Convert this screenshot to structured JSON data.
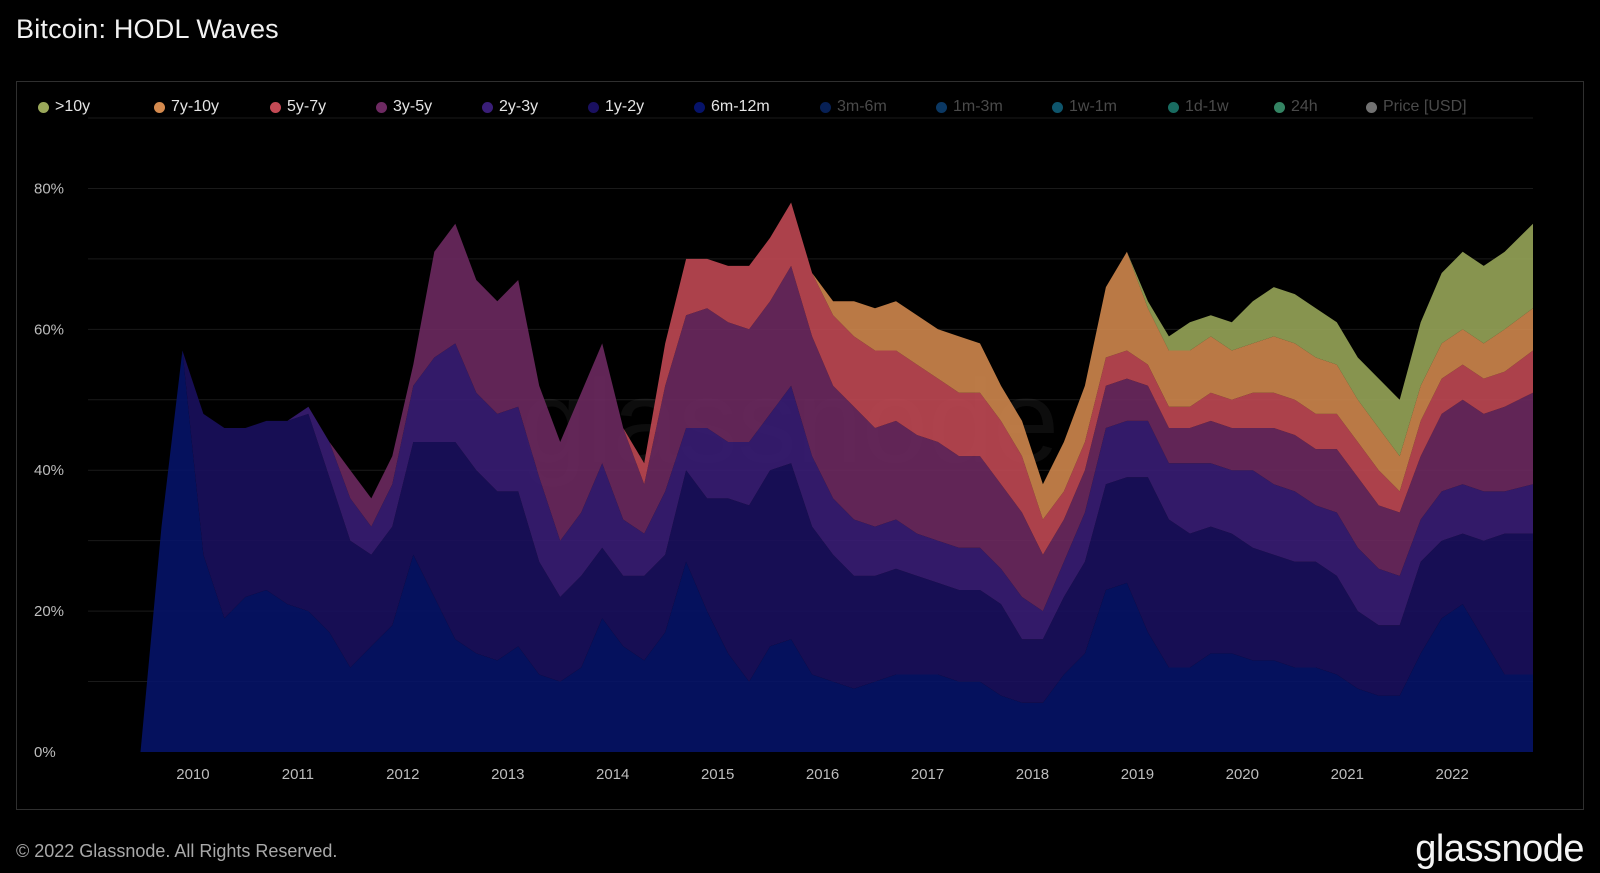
{
  "page": {
    "title": "Bitcoin: HODL Waves",
    "copyright": "© 2022 Glassnode. All Rights Reserved.",
    "brand": "glassnode",
    "watermark": "glassnode"
  },
  "chart_data": {
    "type": "area",
    "stacked": true,
    "title": "Bitcoin: HODL Waves",
    "xlabel": "",
    "ylabel": "",
    "ylim": [
      0,
      90
    ],
    "xlim": [
      2009.0,
      2022.77
    ],
    "y_ticks": [
      0,
      20,
      40,
      60,
      80
    ],
    "y_tick_labels": [
      "0%",
      "20%",
      "40%",
      "60%",
      "80%"
    ],
    "x_ticks": [
      2010,
      2011,
      2012,
      2013,
      2014,
      2015,
      2016,
      2017,
      2018,
      2019,
      2020,
      2021,
      2022
    ],
    "x_tick_labels": [
      "2010",
      "2011",
      "2012",
      "2013",
      "2014",
      "2015",
      "2016",
      "2017",
      "2018",
      "2019",
      "2020",
      "2021",
      "2022"
    ],
    "legend": [
      {
        "name": ">10y",
        "color": "#9aa85a",
        "active": true
      },
      {
        "name": "7y-10y",
        "color": "#d48a4e",
        "active": true
      },
      {
        "name": "5y-7y",
        "color": "#c44a55",
        "active": true
      },
      {
        "name": "3y-5y",
        "color": "#6e2a62",
        "active": true
      },
      {
        "name": "2y-3y",
        "color": "#3a1e78",
        "active": true
      },
      {
        "name": "1y-2y",
        "color": "#1a1060",
        "active": true
      },
      {
        "name": "6m-12m",
        "color": "#06136a",
        "active": true
      },
      {
        "name": "3m-6m",
        "color": "#0c3a9a",
        "active": false
      },
      {
        "name": "1m-3m",
        "color": "#1466b4",
        "active": false
      },
      {
        "name": "1w-1m",
        "color": "#1a9bc4",
        "active": false
      },
      {
        "name": "1d-1w",
        "color": "#2ec4b0",
        "active": false
      },
      {
        "name": "24h",
        "color": "#5ef0b4",
        "active": false
      },
      {
        "name": "Price [USD]",
        "color": "#cfcfcf",
        "active": false
      }
    ],
    "x": [
      2009.5,
      2009.7,
      2009.9,
      2010.1,
      2010.3,
      2010.5,
      2010.7,
      2010.9,
      2011.1,
      2011.3,
      2011.5,
      2011.7,
      2011.9,
      2012.1,
      2012.3,
      2012.5,
      2012.7,
      2012.9,
      2013.1,
      2013.3,
      2013.5,
      2013.7,
      2013.9,
      2014.1,
      2014.3,
      2014.5,
      2014.7,
      2014.9,
      2015.1,
      2015.3,
      2015.5,
      2015.7,
      2015.9,
      2016.1,
      2016.3,
      2016.5,
      2016.7,
      2016.9,
      2017.1,
      2017.3,
      2017.5,
      2017.7,
      2017.9,
      2018.1,
      2018.3,
      2018.5,
      2018.7,
      2018.9,
      2019.1,
      2019.3,
      2019.5,
      2019.7,
      2019.9,
      2020.1,
      2020.3,
      2020.5,
      2020.7,
      2020.9,
      2021.1,
      2021.3,
      2021.5,
      2021.7,
      2021.9,
      2022.1,
      2022.3,
      2022.5,
      2022.77
    ],
    "series": [
      {
        "name": "6m-12m",
        "color": "#06136a",
        "values": [
          0,
          32,
          57,
          28,
          19,
          22,
          23,
          21,
          20,
          17,
          12,
          15,
          18,
          28,
          22,
          16,
          14,
          13,
          15,
          11,
          10,
          12,
          19,
          15,
          13,
          17,
          27,
          20,
          14,
          10,
          15,
          16,
          11,
          10,
          9,
          10,
          11,
          11,
          11,
          10,
          10,
          8,
          7,
          7,
          11,
          14,
          23,
          24,
          17,
          12,
          12,
          14,
          14,
          13,
          13,
          12,
          12,
          11,
          9,
          8,
          8,
          14,
          19,
          21,
          16,
          11,
          11
        ]
      },
      {
        "name": "1y-2y",
        "color": "#1a1060",
        "values": [
          0,
          0,
          0,
          20,
          27,
          24,
          24,
          26,
          28,
          22,
          18,
          13,
          14,
          16,
          22,
          28,
          26,
          24,
          22,
          16,
          12,
          13,
          10,
          10,
          12,
          11,
          13,
          16,
          22,
          25,
          25,
          25,
          21,
          18,
          16,
          15,
          15,
          14,
          13,
          13,
          13,
          13,
          9,
          9,
          11,
          13,
          15,
          15,
          22,
          21,
          19,
          18,
          17,
          16,
          15,
          15,
          15,
          14,
          11,
          10,
          10,
          13,
          11,
          10,
          14,
          20,
          20
        ]
      },
      {
        "name": "2y-3y",
        "color": "#3a1e78",
        "values": [
          0,
          0,
          0,
          0,
          0,
          0,
          0,
          0,
          1,
          5,
          6,
          4,
          6,
          8,
          12,
          14,
          11,
          11,
          12,
          12,
          8,
          9,
          12,
          8,
          6,
          9,
          6,
          10,
          8,
          9,
          8,
          11,
          10,
          8,
          8,
          7,
          7,
          6,
          6,
          6,
          6,
          5,
          6,
          4,
          5,
          7,
          8,
          8,
          8,
          8,
          10,
          9,
          9,
          11,
          10,
          10,
          8,
          9,
          9,
          8,
          7,
          6,
          7,
          7,
          7,
          6,
          7
        ]
      },
      {
        "name": "3y-5y",
        "color": "#6e2a62",
        "values": [
          0,
          0,
          0,
          0,
          0,
          0,
          0,
          0,
          0,
          0,
          4,
          4,
          4,
          3,
          15,
          17,
          16,
          16,
          18,
          13,
          14,
          17,
          17,
          13,
          7,
          15,
          16,
          17,
          17,
          16,
          16,
          17,
          17,
          16,
          16,
          14,
          14,
          14,
          14,
          13,
          13,
          12,
          12,
          8,
          6,
          6,
          6,
          6,
          5,
          5,
          5,
          6,
          6,
          6,
          8,
          8,
          8,
          9,
          10,
          9,
          9,
          9,
          11,
          12,
          11,
          12,
          13
        ]
      },
      {
        "name": "5y-7y",
        "color": "#c44a55",
        "values": [
          0,
          0,
          0,
          0,
          0,
          0,
          0,
          0,
          0,
          0,
          0,
          0,
          0,
          0,
          0,
          0,
          0,
          0,
          0,
          0,
          0,
          0,
          0,
          0,
          3,
          6,
          8,
          7,
          8,
          9,
          9,
          9,
          9,
          10,
          10,
          11,
          10,
          10,
          9,
          9,
          9,
          9,
          8,
          5,
          4,
          4,
          4,
          4,
          3,
          3,
          3,
          4,
          4,
          5,
          5,
          5,
          5,
          5,
          5,
          5,
          3,
          5,
          5,
          5,
          5,
          5,
          6
        ]
      },
      {
        "name": "7y-10y",
        "color": "#d48a4e",
        "values": [
          0,
          0,
          0,
          0,
          0,
          0,
          0,
          0,
          0,
          0,
          0,
          0,
          0,
          0,
          0,
          0,
          0,
          0,
          0,
          0,
          0,
          0,
          0,
          0,
          0,
          0,
          0,
          0,
          0,
          0,
          0,
          0,
          0,
          2,
          5,
          6,
          7,
          7,
          7,
          8,
          7,
          5,
          5,
          5,
          7,
          8,
          10,
          14,
          8,
          8,
          8,
          8,
          7,
          7,
          8,
          8,
          8,
          7,
          6,
          6,
          5,
          5,
          5,
          5,
          5,
          6,
          6
        ]
      },
      {
        "name": ">10y",
        "color": "#9aa85a",
        "values": [
          0,
          0,
          0,
          0,
          0,
          0,
          0,
          0,
          0,
          0,
          0,
          0,
          0,
          0,
          0,
          0,
          0,
          0,
          0,
          0,
          0,
          0,
          0,
          0,
          0,
          0,
          0,
          0,
          0,
          0,
          0,
          0,
          0,
          0,
          0,
          0,
          0,
          0,
          0,
          0,
          0,
          0,
          0,
          0,
          0,
          0,
          0,
          0,
          1,
          2,
          4,
          3,
          4,
          6,
          7,
          7,
          7,
          6,
          6,
          7,
          8,
          9,
          10,
          11,
          11,
          11,
          12
        ]
      }
    ]
  }
}
